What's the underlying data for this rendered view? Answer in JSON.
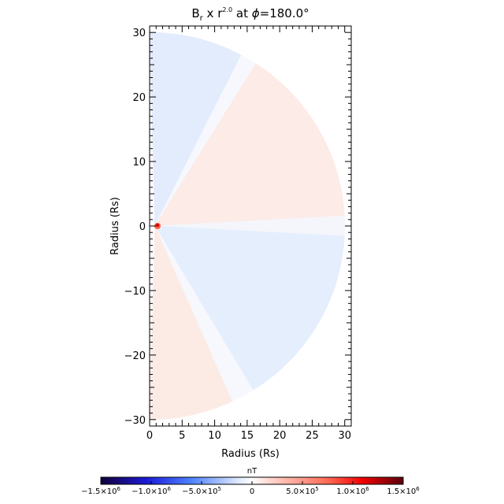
{
  "chart_data": {
    "type": "heatmap",
    "title": {
      "prefix": "B",
      "prefix_sub": "r",
      "middle": " x r",
      "exponent": "2.0",
      "suffix": " at ",
      "phi_symbol": "ϕ",
      "phi_value": "=180.0°"
    },
    "xlabel": "Radius (Rs)",
    "ylabel": "Radius (Rs)",
    "xlim": [
      0,
      31
    ],
    "ylim": [
      -31,
      31
    ],
    "x_ticks": [
      0,
      5,
      10,
      15,
      20,
      25,
      30
    ],
    "x_tick_labels": [
      "0",
      "5",
      "10",
      "15",
      "20",
      "25",
      "30"
    ],
    "y_ticks": [
      -30,
      -20,
      -10,
      0,
      10,
      20,
      30
    ],
    "y_tick_labels": [
      "−30",
      "−20",
      "−10",
      "0",
      "10",
      "20",
      "30"
    ],
    "domain_r_max": 30,
    "sectors": [
      {
        "name": "upper-blue",
        "theta_from": 62,
        "theta_to": 90,
        "color": "#e3ecfc"
      },
      {
        "name": "upper-transition",
        "theta_from": 57,
        "theta_to": 62,
        "color": "#f6f8fd"
      },
      {
        "name": "upper-red",
        "theta_from": 3,
        "theta_to": 57,
        "color": "#fcebe6"
      },
      {
        "name": "equator-transition",
        "theta_from": -3,
        "theta_to": 3,
        "color": "#f4f6fc"
      },
      {
        "name": "lower-blue",
        "theta_from": -58,
        "theta_to": -3,
        "color": "#e5eefd"
      },
      {
        "name": "lower-transition",
        "theta_from": -65,
        "theta_to": -58,
        "color": "#f7f8fd"
      },
      {
        "name": "lower-red",
        "theta_from": -90,
        "theta_to": -65,
        "color": "#fcebe5"
      }
    ],
    "colorbar": {
      "title": "nT",
      "range": [
        -1500000,
        1500000
      ],
      "ticks": [
        -1500000,
        -1000000,
        -500000,
        0,
        500000,
        1000000,
        1500000
      ],
      "tick_labels": [
        {
          "mant": "−1.5×10",
          "exp": "6"
        },
        {
          "mant": "−1.0×10",
          "exp": "6"
        },
        {
          "mant": "−5.0×10",
          "exp": "5"
        },
        {
          "mant": "0",
          "exp": ""
        },
        {
          "mant": "5.0×10",
          "exp": "5"
        },
        {
          "mant": "1.0×10",
          "exp": "6"
        },
        {
          "mant": "1.5×10",
          "exp": "6"
        }
      ],
      "stops": [
        {
          "value": -1500000,
          "color": "#120038"
        },
        {
          "value": -1050000,
          "color": "#1a1ad8"
        },
        {
          "value": -600000,
          "color": "#4f82ff"
        },
        {
          "value": -150000,
          "color": "#dbe6ff"
        },
        {
          "value": 0,
          "color": "#ffffff"
        },
        {
          "value": 150000,
          "color": "#ffdcd4"
        },
        {
          "value": 750000,
          "color": "#ff6a55"
        },
        {
          "value": 1100000,
          "color": "#f00000"
        },
        {
          "value": 1500000,
          "color": "#5a0010"
        }
      ]
    }
  }
}
